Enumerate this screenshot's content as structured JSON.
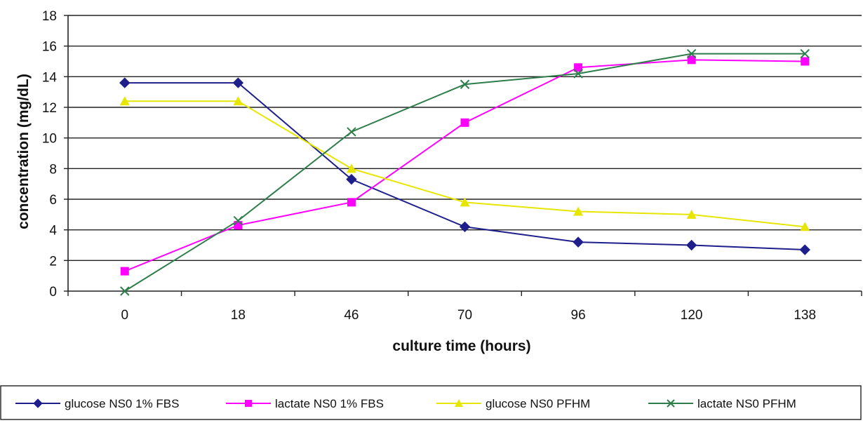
{
  "chart_data": {
    "type": "line",
    "title": "",
    "xlabel": "culture time (hours)",
    "ylabel": "concentration (mg/dL)",
    "categories": [
      "0",
      "18",
      "46",
      "70",
      "96",
      "120",
      "138"
    ],
    "ylim": [
      0,
      18
    ],
    "yticks": [
      "0",
      "2",
      "4",
      "6",
      "8",
      "10",
      "12",
      "14",
      "16",
      "18"
    ],
    "grid": "horizontal",
    "legend_position": "bottom",
    "series": [
      {
        "name": "glucose NS0 1% FBS",
        "color": "#1f1f8c",
        "marker": "diamond",
        "values": [
          13.6,
          13.6,
          7.3,
          4.2,
          3.2,
          3.0,
          2.7
        ]
      },
      {
        "name": "lactate NS0 1% FBS",
        "color": "#ff00ff",
        "marker": "square",
        "values": [
          1.3,
          4.3,
          5.8,
          11.0,
          14.6,
          15.1,
          15.0
        ]
      },
      {
        "name": "glucose NS0 PFHM",
        "color": "#e6e600",
        "marker": "triangle",
        "values": [
          12.4,
          12.4,
          8.0,
          5.8,
          5.2,
          5.0,
          4.2
        ]
      },
      {
        "name": "lactate NS0 PFHM",
        "color": "#2e7d4a",
        "marker": "x",
        "values": [
          0.0,
          4.6,
          10.4,
          13.5,
          14.2,
          15.5,
          15.5
        ]
      }
    ]
  }
}
